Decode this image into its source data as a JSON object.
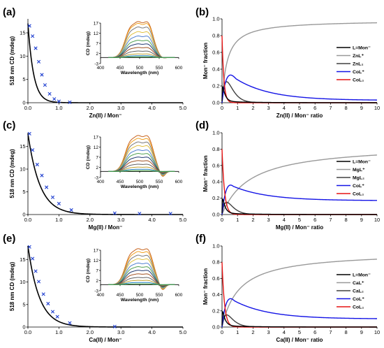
{
  "chart_data": [
    {
      "panel": "(a)",
      "type": "scatter",
      "xlabel": "Zn(II) / Mon⁻",
      "ylabel": "518 nm CD (mdeg)",
      "xlim": [
        0,
        5
      ],
      "ylim": [
        0,
        18
      ],
      "xticks": [
        "0.0",
        "1.0",
        "2.0",
        "3.0",
        "4.0",
        "5.0"
      ],
      "yticks": [
        "0",
        "5",
        "10",
        "15"
      ],
      "points": {
        "x": [
          0.05,
          0.15,
          0.25,
          0.35,
          0.45,
          0.55,
          0.7,
          0.85,
          1.0,
          1.35
        ],
        "y": [
          16.5,
          14.3,
          11.7,
          8.8,
          6.0,
          3.8,
          1.9,
          0.8,
          0.3,
          0.1
        ]
      },
      "fit": {
        "A": 17.0,
        "k": 5.5
      },
      "inset": {
        "xlabel": "Wavelength (nm)",
        "ylabel": "CD (mdeg)",
        "xlim": [
          400,
          600
        ],
        "ylim": [
          -3,
          17
        ],
        "xticks": [
          "400",
          "450",
          "500",
          "550",
          "600"
        ],
        "yticks": [
          "-3",
          "2",
          "7",
          "12",
          "17"
        ],
        "scales": [
          1.0,
          0.95,
          0.85,
          0.72,
          0.6,
          0.48,
          0.38,
          0.28,
          0.18,
          0.1,
          0.05,
          0.02
        ],
        "dip": 0
      }
    },
    {
      "panel": "(b)",
      "type": "line",
      "xlabel": "Zn(II) / Mon⁻ ratio",
      "ylabel": "Mon⁻ fraction",
      "xlim": [
        0,
        10
      ],
      "ylim": [
        0,
        1
      ],
      "xticks": [
        "0",
        "1",
        "2",
        "3",
        "4",
        "5",
        "6",
        "7",
        "8",
        "9",
        "10"
      ],
      "yticks": [
        "0.0",
        "0.2",
        "0.4",
        "0.6",
        "0.8",
        "1.0"
      ],
      "legend": [
        "L=Mon⁻",
        "ZnL⁺",
        "ZnL₂",
        "CoL⁺",
        "CoL₂"
      ],
      "asym": 0.985,
      "mlK": 3.0,
      "colK": 1.5,
      "colPeak": 0.33,
      "colTail": 0.028
    },
    {
      "panel": "(c)",
      "type": "scatter",
      "xlabel": "Mg(II) / Mon⁻",
      "ylabel": "518 nm CD (mdeg)",
      "xlim": [
        0,
        5
      ],
      "ylim": [
        0,
        18
      ],
      "xticks": [
        "0.0",
        "1.0",
        "2.0",
        "3.0",
        "4.0",
        "5.0"
      ],
      "yticks": [
        "0",
        "5",
        "10",
        "15"
      ],
      "points": {
        "x": [
          0.05,
          0.15,
          0.3,
          0.45,
          0.6,
          0.8,
          1.0,
          1.4,
          2.8,
          3.6,
          4.6
        ],
        "y": [
          17.8,
          14.2,
          11.0,
          8.6,
          6.0,
          3.8,
          2.4,
          1.0,
          0.3,
          0.2,
          0.2
        ]
      },
      "fit": {
        "A": 17.8,
        "k": 2.6
      },
      "inset": {
        "xlabel": "Wavelength (nm)",
        "ylabel": "CD (mdeg)",
        "xlim": [
          400,
          600
        ],
        "ylim": [
          -3,
          17
        ],
        "xticks": [
          "400",
          "450",
          "500",
          "550",
          "600"
        ],
        "yticks": [
          "-3",
          "2",
          "7",
          "12",
          "17"
        ],
        "scales": [
          1.0,
          0.92,
          0.82,
          0.72,
          0.6,
          0.5,
          0.4,
          0.3,
          0.2,
          0.12,
          0.06,
          0.02
        ],
        "dip": 1
      }
    },
    {
      "panel": "(d)",
      "type": "line",
      "xlabel": "Mg(II) / Mon⁻ ratio",
      "ylabel": "Mon⁻ fraction",
      "xlim": [
        0,
        10
      ],
      "ylim": [
        0,
        1
      ],
      "xticks": [
        "0",
        "1",
        "2",
        "3",
        "4",
        "5",
        "6",
        "7",
        "8",
        "9",
        "10"
      ],
      "yticks": [
        "0.0",
        "0.2",
        "0.4",
        "0.6",
        "0.8",
        "1.0"
      ],
      "legend": [
        "L=Mon⁻",
        "MgL⁺",
        "MgL₂",
        "CoL⁺",
        "CoL₂"
      ],
      "asym": 0.86,
      "mlK": 0.55,
      "colK": 1.1,
      "colPeak": 0.36,
      "colTail": 0.17
    },
    {
      "panel": "(e)",
      "type": "scatter",
      "xlabel": "Ca(II) / Mon⁻",
      "ylabel": "518 nm CD (mdeg)",
      "xlim": [
        0,
        5
      ],
      "ylim": [
        0,
        18
      ],
      "xticks": [
        "0.0",
        "1.0",
        "2.0",
        "3.0",
        "4.0",
        "5.0"
      ],
      "yticks": [
        "0",
        "5",
        "10",
        "15"
      ],
      "points": {
        "x": [
          0.05,
          0.15,
          0.25,
          0.35,
          0.5,
          0.65,
          0.8,
          0.95,
          1.35,
          2.8
        ],
        "y": [
          17.8,
          15.2,
          12.4,
          10.1,
          7.3,
          5.2,
          3.4,
          2.3,
          0.9,
          0.1
        ]
      },
      "fit": {
        "A": 18.0,
        "k": 2.7
      },
      "inset": {
        "xlabel": "Wavelength (nm)",
        "ylabel": "CD (mdeg)",
        "xlim": [
          400,
          600
        ],
        "ylim": [
          -3,
          17
        ],
        "xticks": [
          "400",
          "450",
          "500",
          "550",
          "600"
        ],
        "yticks": [
          "-3",
          "2",
          "7",
          "12",
          "17"
        ],
        "scales": [
          1.0,
          0.92,
          0.82,
          0.72,
          0.6,
          0.5,
          0.4,
          0.3,
          0.2,
          0.12,
          0.06,
          0.02
        ],
        "dip": 1
      }
    },
    {
      "panel": "(f)",
      "type": "line",
      "xlabel": "Ca(II) / Mon⁻ ratio",
      "ylabel": "Mon⁻ fraction",
      "xlim": [
        0,
        10
      ],
      "ylim": [
        0,
        1
      ],
      "xticks": [
        "0",
        "1",
        "2",
        "3",
        "4",
        "5",
        "6",
        "7",
        "8",
        "9",
        "10"
      ],
      "yticks": [
        "0.0",
        "0.2",
        "0.4",
        "0.6",
        "0.8",
        "1.0"
      ],
      "legend": [
        "L=Mon⁻",
        "CaL⁺",
        "CaL₂",
        "CoL⁺",
        "CoL₂"
      ],
      "asym": 0.93,
      "mlK": 0.9,
      "colK": 1.1,
      "colPeak": 0.35,
      "colTail": 0.1
    }
  ],
  "colors": {
    "marker": "#1f3fd0",
    "fit": "#000000",
    "L": "#000000",
    "ML": "#999999",
    "ML2": "#404040",
    "CoL": "#1414e6",
    "CoL2": "#e61414",
    "inset": [
      "#c8641e",
      "#f0a020",
      "#7a7a7a",
      "#e0c040",
      "#5080d0",
      "#50a050",
      "#203870",
      "#a05020",
      "#606060",
      "#c0a030",
      "#2080c0",
      "#40a040"
    ]
  }
}
